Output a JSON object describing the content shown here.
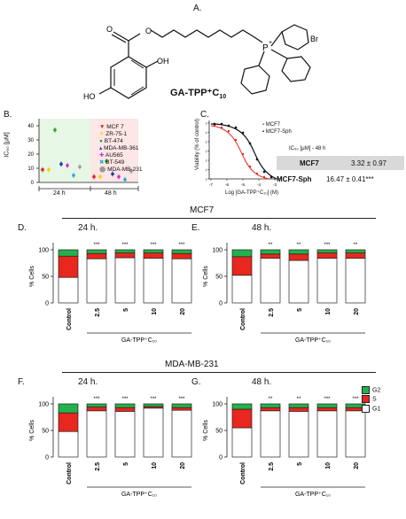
{
  "panel_labels": {
    "A": "A.",
    "B": "B.",
    "C": "C.",
    "D": "D.",
    "E": "E.",
    "F": "F.",
    "G": "G."
  },
  "compound_name": "GA-TPP⁺C",
  "compound_sub": "10",
  "br_label": "Br",
  "p_label": "P",
  "plus_label": "+",
  "o_label": "O",
  "oh_label": "OH",
  "ho_label": "HO",
  "panelB": {
    "ylabel": "IC₅₀ [μM]",
    "yticks": [
      "0",
      "10",
      "20",
      "30",
      "40"
    ],
    "group_24": "24 h",
    "group_48": "48 h",
    "legend": [
      {
        "name": "MCF 7",
        "color": "#d62728",
        "symbol": "▼"
      },
      {
        "name": "ZR-75-1",
        "color": "#ffcc00",
        "symbol": "✶"
      },
      {
        "name": "BT-474",
        "color": "#2ca02c",
        "symbol": "●"
      },
      {
        "name": "MDA-MB-361",
        "color": "#1f3b9b",
        "symbol": "▴"
      },
      {
        "name": "AU565",
        "color": "#cc33cc",
        "symbol": "✚"
      },
      {
        "name": "BT-549",
        "color": "#22aacc",
        "symbol": "✖"
      },
      {
        "name": "MDA-MB-231",
        "color": "#999999",
        "symbol": "⬤"
      }
    ]
  },
  "panelC": {
    "ylabel": "Viability (% of control)",
    "xlabel": "Log [GA-TPP⁺C₁₀] (M)",
    "yticks": [
      "0",
      "20",
      "40",
      "60",
      "80",
      "100",
      "120"
    ],
    "xticks": [
      "-7",
      "-6",
      "-5",
      "-4",
      "-3"
    ],
    "legend": [
      "MCF7",
      "MCF7-Sph"
    ]
  },
  "ic50_table": {
    "header": "IC₅₀ [μM] - 48 h",
    "rows": [
      {
        "line": "MCF7",
        "value": "3.32 ± 0.97"
      },
      {
        "line": "MCF7-Sph",
        "value": "16.47 ± 0.41***"
      }
    ]
  },
  "section_mcf7": "MCF7",
  "section_mda": "MDA-MB-231",
  "cellcycle": {
    "ylabel": "% Cells",
    "yticks": [
      "0",
      "50",
      "100"
    ],
    "categories": [
      "Control",
      "2.5",
      "5",
      "10",
      "20"
    ],
    "unit": "[μM]",
    "drug_label": "GA-TPP⁺C₁₀",
    "legend": [
      {
        "name": "G2",
        "color": "#22b14c"
      },
      {
        "name": "S",
        "color": "#e8271e"
      },
      {
        "name": "G1",
        "color": "#ffffff"
      }
    ],
    "panels": [
      {
        "key": "D",
        "title": "24 h.",
        "g1": [
          48,
          83,
          85,
          84,
          83
        ],
        "s": [
          40,
          10,
          9,
          10,
          10
        ],
        "g2": [
          12,
          7,
          6,
          6,
          7
        ],
        "sig": [
          "",
          "***",
          "***",
          "***",
          "***"
        ]
      },
      {
        "key": "E",
        "title": "48 h.",
        "g1": [
          52,
          84,
          80,
          84,
          84
        ],
        "s": [
          35,
          8,
          12,
          10,
          10
        ],
        "g2": [
          13,
          8,
          8,
          6,
          6
        ],
        "sig": [
          "",
          "**",
          "**",
          "***",
          "**"
        ]
      },
      {
        "key": "F",
        "title": "24 h.",
        "g1": [
          48,
          87,
          86,
          92,
          88
        ],
        "s": [
          35,
          7,
          7,
          3,
          5
        ],
        "g2": [
          17,
          6,
          7,
          5,
          7
        ],
        "sig": [
          "",
          "***",
          "***",
          "***",
          "***"
        ]
      },
      {
        "key": "G",
        "title": "48 h.",
        "g1": [
          55,
          87,
          86,
          87,
          87
        ],
        "s": [
          35,
          6,
          7,
          6,
          6
        ],
        "g2": [
          10,
          7,
          7,
          7,
          7
        ],
        "sig": [
          "",
          "**",
          "**",
          "***",
          "***"
        ]
      }
    ]
  }
}
